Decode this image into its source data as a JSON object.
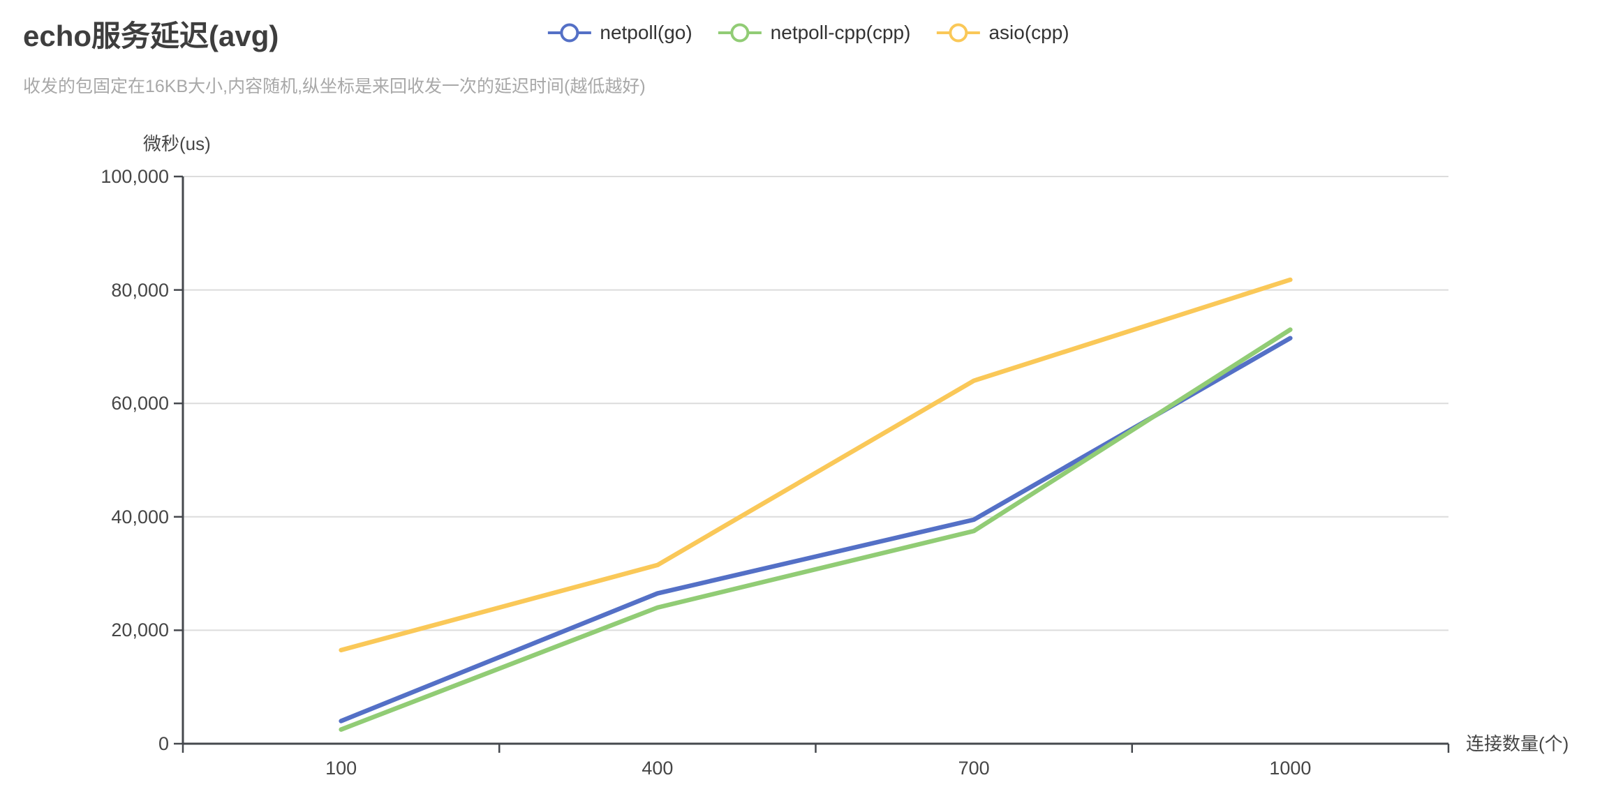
{
  "header": {
    "title": "echo服务延迟(avg)",
    "subtitle": "收发的包固定在16KB大小,内容随机,纵坐标是来回收发一次的延迟时间(越低越好)"
  },
  "chart_data": {
    "type": "line",
    "title": "echo服务延迟(avg)",
    "subtitle": "收发的包固定在16KB大小,内容随机,纵坐标是来回收发一次的延迟时间(越低越好)",
    "categories": [
      "100",
      "400",
      "700",
      "1000"
    ],
    "series": [
      {
        "name": "netpoll(go)",
        "color": "#5470c6",
        "values": [
          4000,
          26500,
          39500,
          71500
        ]
      },
      {
        "name": "netpoll-cpp(cpp)",
        "color": "#91cc75",
        "values": [
          2500,
          24000,
          37500,
          73000
        ]
      },
      {
        "name": "asio(cpp)",
        "color": "#fac858",
        "values": [
          16500,
          31500,
          64000,
          81800
        ]
      }
    ],
    "xlabel": "连接数量(个)",
    "ylabel": "微秒(us)",
    "ylim": [
      0,
      100000
    ],
    "y_ticks": [
      0,
      20000,
      40000,
      60000,
      80000,
      100000
    ],
    "y_tick_labels": [
      "0",
      "20,000",
      "40,000",
      "60,000",
      "80,000",
      "100,000"
    ],
    "grid": true,
    "legend_position": "top-center",
    "markers": "none"
  },
  "colors": {
    "background": "#ffffff",
    "title_text": "#3e3e3e",
    "subtitle_text": "#a8a8a8",
    "axis_line": "#45484d",
    "tick_label": "#464646",
    "gridline": "#dcdcdc",
    "legend_text": "#333333"
  }
}
